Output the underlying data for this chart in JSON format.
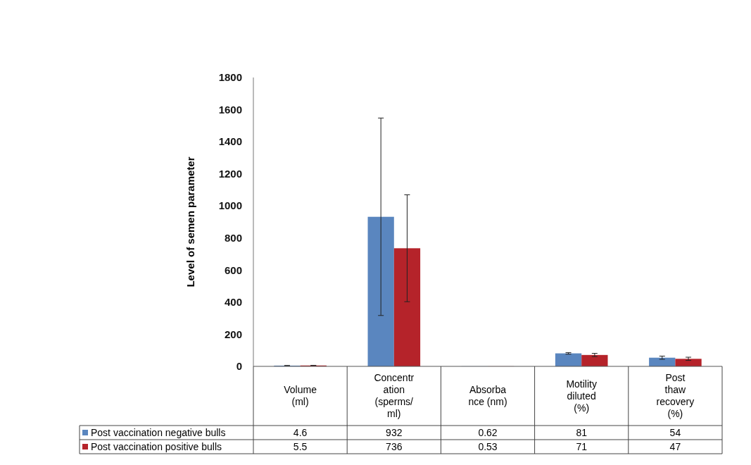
{
  "chart_data": {
    "type": "bar",
    "ylabel": "Level of semen parameter",
    "categories": [
      "Volume\n(ml)",
      "Concentr\nation\n(sperms/\nml)",
      "Absorba\nnce (nm)",
      "Motility\ndiluted\n(%)",
      "Post\nthaw\nrecovery\n(%)"
    ],
    "series": [
      {
        "name": "Post vaccination negative bulls",
        "color": "#5a86bf",
        "values": [
          4.6,
          932,
          0.62,
          81,
          54
        ],
        "errors": [
          1,
          615,
          null,
          5,
          10
        ]
      },
      {
        "name": "Post vaccination positive bulls",
        "color": "#b5232a",
        "values": [
          5.5,
          736,
          0.53,
          71,
          47
        ],
        "errors": [
          1,
          333,
          null,
          10,
          10
        ]
      }
    ],
    "ylim": [
      0,
      1800
    ],
    "yticks": [
      0,
      200,
      400,
      600,
      800,
      1000,
      1200,
      1400,
      1600,
      1800
    ],
    "data_labels": true,
    "legend": "bottom left",
    "grid": false
  }
}
